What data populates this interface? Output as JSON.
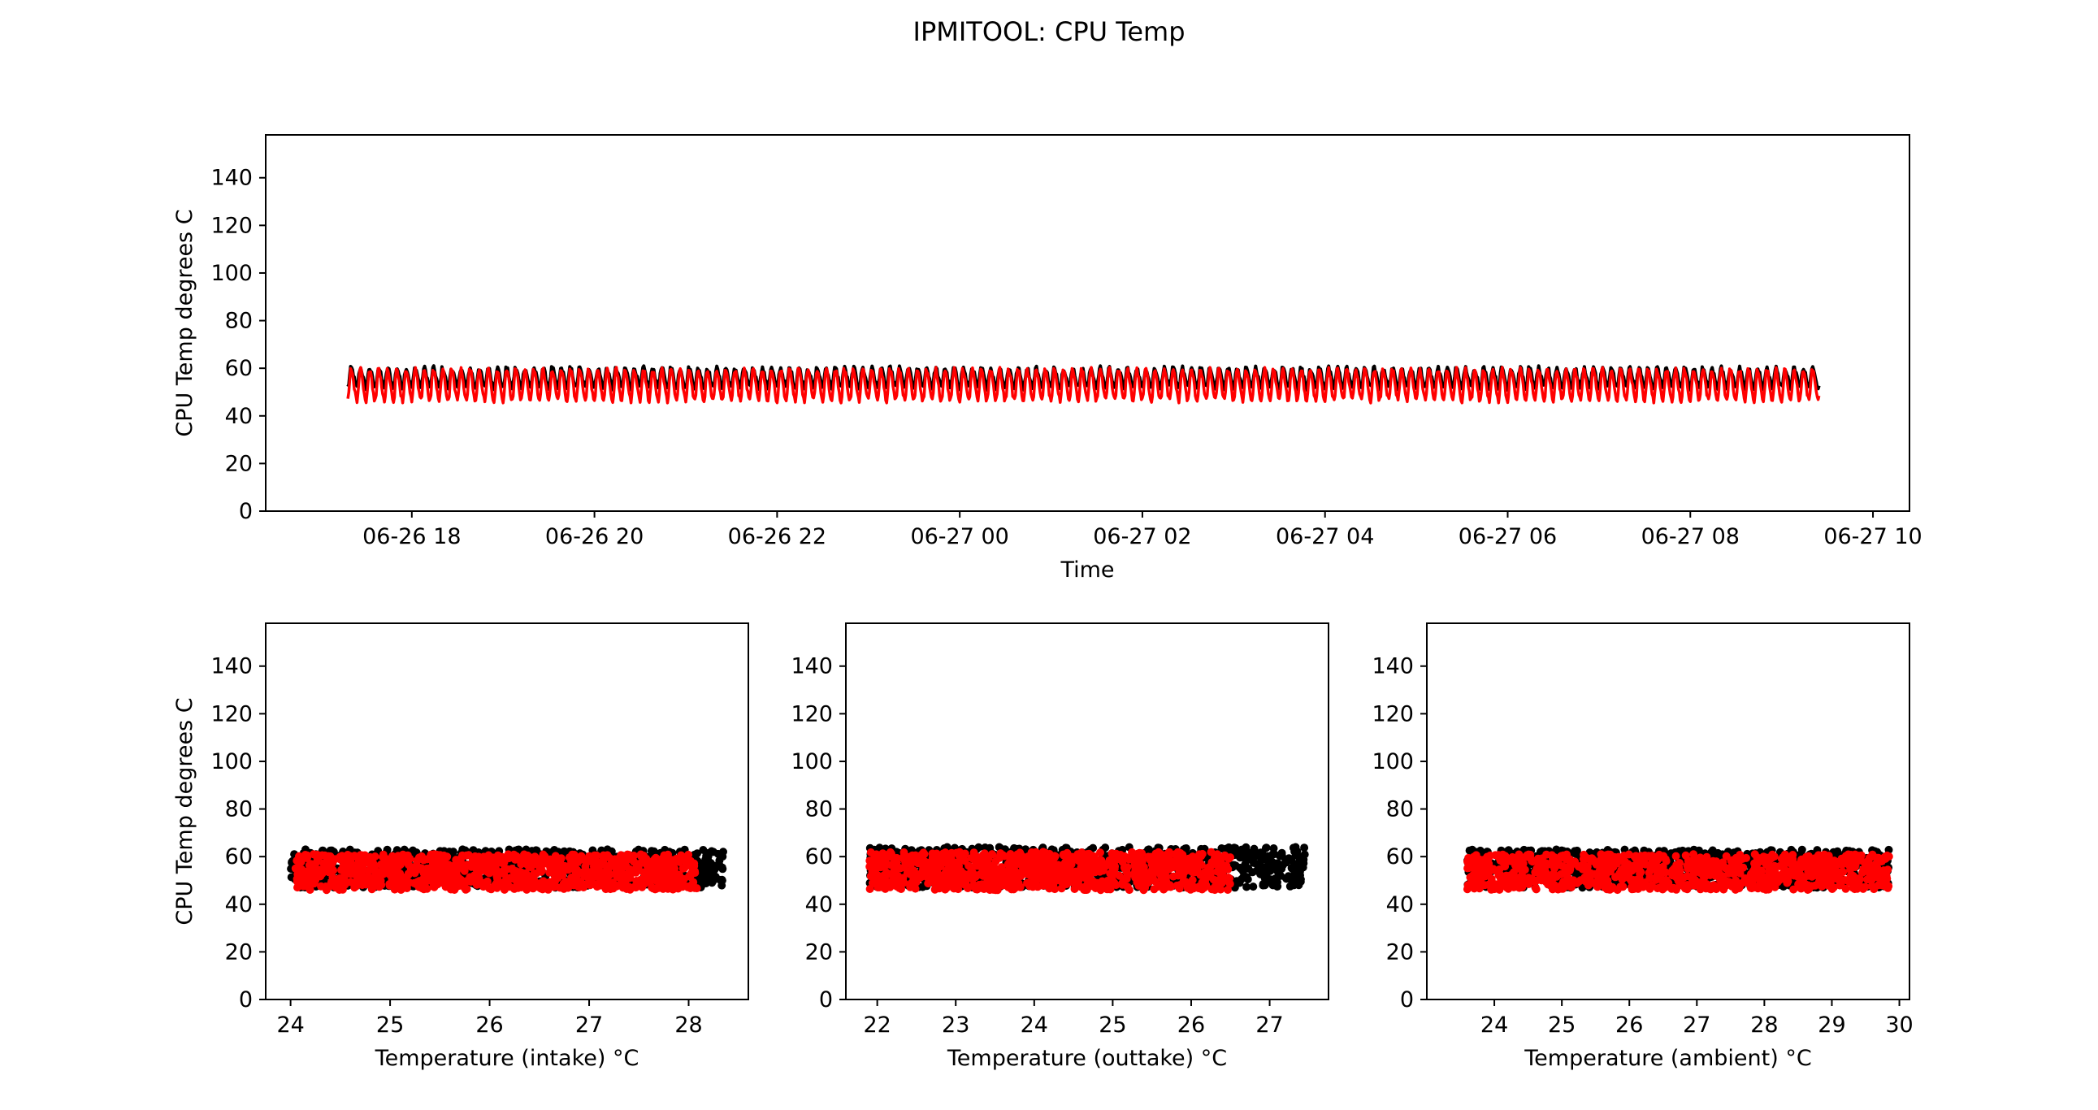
{
  "figure": {
    "suptitle": "IPMITOOL: CPU Temp"
  },
  "colors": {
    "series_a": "#000000",
    "series_b": "#ff0000",
    "axes": "#000000",
    "background": "#ffffff"
  },
  "chart_data": [
    {
      "type": "line",
      "xlabel": "Time",
      "ylabel": "CPU Temp degrees C",
      "xlim": [
        "2019-06-26 16:24",
        "2019-06-27 10:24"
      ],
      "ylim": [
        0,
        158
      ],
      "xticks": [
        "06-26 18",
        "06-26 20",
        "06-26 22",
        "06-27 00",
        "06-27 02",
        "06-27 04",
        "06-27 06",
        "06-27 08",
        "06-27 10"
      ],
      "yticks": [
        "0",
        "20",
        "40",
        "60",
        "80",
        "100",
        "120",
        "140"
      ],
      "grid": false,
      "series": [
        {
          "color": "#000000",
          "x_start": "06-26 17:18",
          "x_end": "06-27 09:25",
          "period_minutes": 6,
          "mean": 56,
          "amplitude": 4.5
        },
        {
          "color": "#ff0000",
          "x_start": "06-26 17:18",
          "x_end": "06-27 09:25",
          "period_minutes": 6,
          "mean": 53,
          "amplitude": 6.5
        }
      ]
    },
    {
      "type": "scatter",
      "xlabel": "Temperature (intake) °C",
      "ylabel": "CPU Temp degrees C",
      "xlim": [
        23.75,
        28.6
      ],
      "ylim": [
        0,
        158
      ],
      "xticks": [
        "24",
        "25",
        "26",
        "27",
        "28"
      ],
      "yticks": [
        "0",
        "20",
        "40",
        "60",
        "80",
        "100",
        "120",
        "140"
      ],
      "series": [
        {
          "color": "#000000",
          "x_range": [
            24.0,
            28.35
          ],
          "y_range": [
            47,
            63
          ]
        },
        {
          "color": "#ff0000",
          "x_range": [
            24.05,
            28.1
          ],
          "y_range": [
            46,
            61
          ]
        }
      ]
    },
    {
      "type": "scatter",
      "xlabel": "Temperature (outtake) °C",
      "ylabel": "",
      "xlim": [
        21.6,
        27.75
      ],
      "ylim": [
        0,
        158
      ],
      "xticks": [
        "22",
        "23",
        "24",
        "25",
        "26",
        "27"
      ],
      "yticks": [
        "0",
        "20",
        "40",
        "60",
        "80",
        "100",
        "120",
        "140"
      ],
      "series": [
        {
          "color": "#000000",
          "x_range": [
            21.9,
            27.45
          ],
          "y_range": [
            47,
            64
          ]
        },
        {
          "color": "#ff0000",
          "x_range": [
            21.9,
            26.5
          ],
          "y_range": [
            46,
            62
          ]
        }
      ]
    },
    {
      "type": "scatter",
      "xlabel": "Temperature (ambient) °C",
      "ylabel": "",
      "xlim": [
        23.0,
        30.15
      ],
      "ylim": [
        0,
        158
      ],
      "xticks": [
        "24",
        "25",
        "26",
        "27",
        "28",
        "29",
        "30"
      ],
      "yticks": [
        "0",
        "20",
        "40",
        "60",
        "80",
        "100",
        "120",
        "140"
      ],
      "series": [
        {
          "color": "#000000",
          "x_range": [
            23.6,
            29.85
          ],
          "y_range": [
            47,
            63
          ]
        },
        {
          "color": "#ff0000",
          "x_range": [
            23.6,
            29.85
          ],
          "y_range": [
            46,
            61
          ]
        }
      ]
    }
  ]
}
